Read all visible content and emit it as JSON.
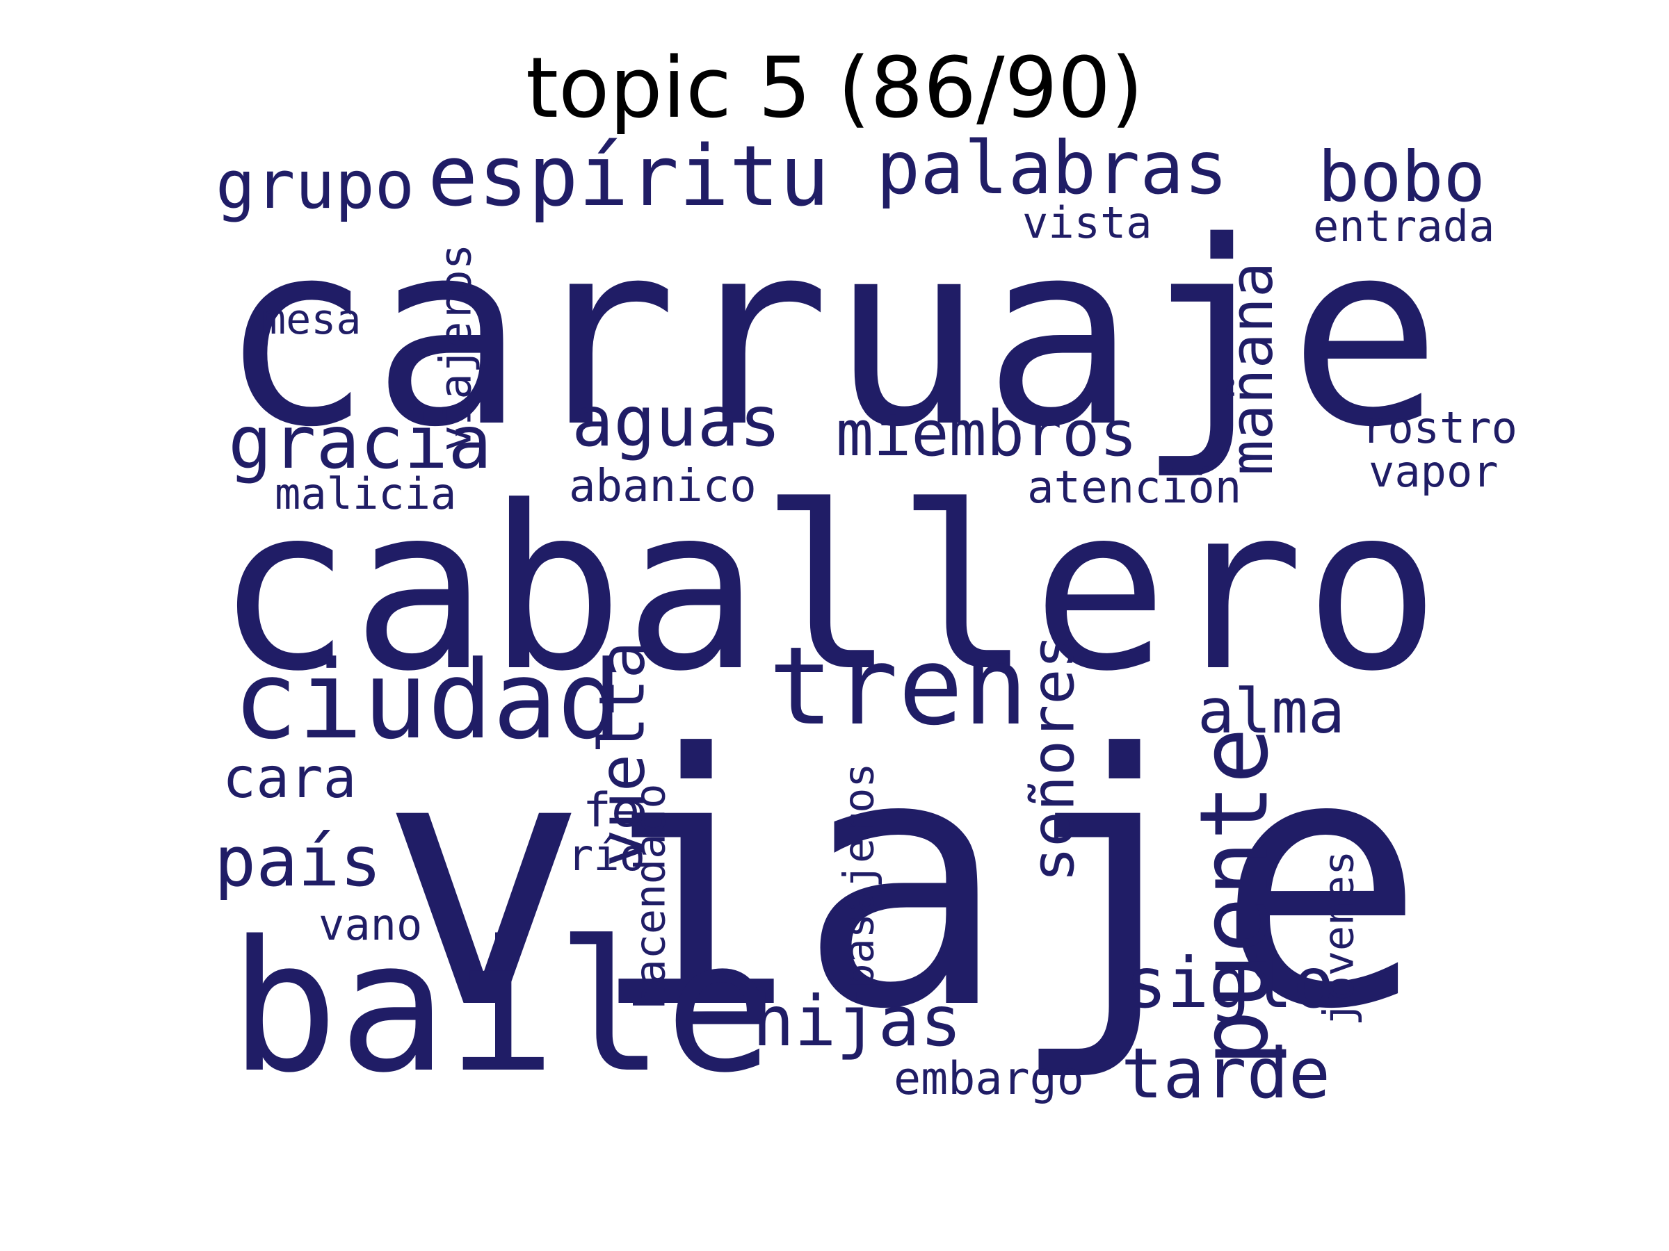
{
  "title": "topic 5 (86/90)",
  "word_color": "#201d66",
  "words": [
    "carruaje",
    "caballero",
    "viaje",
    "baile",
    "ciudad",
    "tren",
    "puente",
    "espíritu",
    "palabras",
    "bobo",
    "grupo",
    "vista",
    "entrada",
    "mesa",
    "viajeros",
    "mañana",
    "gracia",
    "aguas",
    "miembros",
    "rostro",
    "vapor",
    "malicia",
    "abanico",
    "atención",
    "vuelta",
    "señores",
    "alma",
    "cara",
    "hacendado",
    "fe",
    "río",
    "país",
    "pasajeros",
    "jóvenes",
    "vano",
    "siglo",
    "hijas",
    "tarde",
    "embargo"
  ]
}
